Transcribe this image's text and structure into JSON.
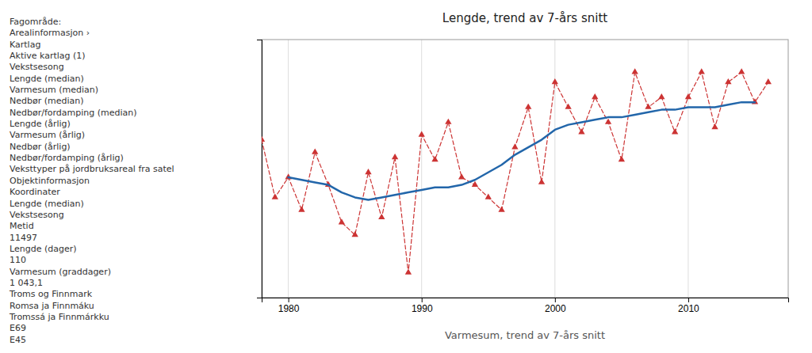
{
  "chart_data": {
    "type": "line",
    "title": "Lengde, trend av 7-års snitt",
    "subtitle": "Varmesum, trend av 7-års snitt",
    "xlim": [
      1978,
      2017.5
    ],
    "xticks": [
      1980,
      1990,
      2000,
      2010
    ],
    "ylim": [
      42,
      145
    ],
    "tick_labels": "x",
    "grid": true,
    "series": [
      {
        "type": "line",
        "color": "#cc3333",
        "line_style": "dashed",
        "marker": "triangle",
        "x": [
          1978,
          1979,
          1980,
          1981,
          1982,
          1983,
          1984,
          1985,
          1986,
          1987,
          1988,
          1989,
          1990,
          1991,
          1992,
          1993,
          1994,
          1995,
          1996,
          1997,
          1998,
          1999,
          2000,
          2001,
          2002,
          2003,
          2004,
          2005,
          2006,
          2007,
          2008,
          2009,
          2010,
          2011,
          2012,
          2013,
          2014,
          2015,
          2016
        ],
        "values": [
          105,
          82,
          90,
          77,
          100,
          87,
          72,
          67,
          92,
          74,
          98,
          52,
          107,
          97,
          112,
          90,
          87,
          82,
          77,
          102,
          118,
          88,
          128,
          118,
          108,
          122,
          112,
          97,
          132,
          118,
          122,
          108,
          122,
          132,
          110,
          128,
          132,
          120,
          128
        ]
      },
      {
        "type": "line",
        "color": "#2266aa",
        "line_style": "solid",
        "x": [
          1980,
          1981,
          1982,
          1983,
          1984,
          1985,
          1986,
          1987,
          1988,
          1989,
          1990,
          1991,
          1992,
          1993,
          1994,
          1995,
          1996,
          1997,
          1998,
          1999,
          2000,
          2001,
          2002,
          2003,
          2004,
          2005,
          2006,
          2007,
          2008,
          2009,
          2010,
          2011,
          2012,
          2013,
          2014,
          2015
        ],
        "values": [
          90,
          89,
          88,
          87,
          84,
          82,
          81,
          82,
          83,
          84,
          85,
          86,
          86,
          87,
          89,
          92,
          95,
          99,
          102,
          105,
          109,
          111,
          112,
          113,
          114,
          114,
          115,
          116,
          117,
          117,
          118,
          118,
          118,
          119,
          120,
          120
        ]
      }
    ],
    "annotations": [
      "Fagområde:",
      "Arealinformasjon ›",
      "Kartlag",
      "Aktive kartlag (1)",
      "Vekstsesong",
      "Lengde (median)",
      "Varmesum (median)",
      "Nedbør (median)",
      "Nedbør/fordamping (median)",
      "Lengde (årlig)",
      "Varmesum (årlig)",
      "Nedbør (årlig)",
      "Nedbør/fordamping (årlig)",
      "Veksttyper på jordbruksareal fra satel",
      "Objektinformasjon",
      "Koordinater",
      "Lengde (median)",
      "Vekstsesong",
      "Metid",
      "11497",
      "Lengde (dager)",
      "110",
      "Varmesum (graddager)",
      "1 043,1",
      "Troms og Finnmark",
      "Romsa ja Finnmáku",
      "Tromssá ja Finnmárkku",
      "E69",
      "E45"
    ]
  }
}
